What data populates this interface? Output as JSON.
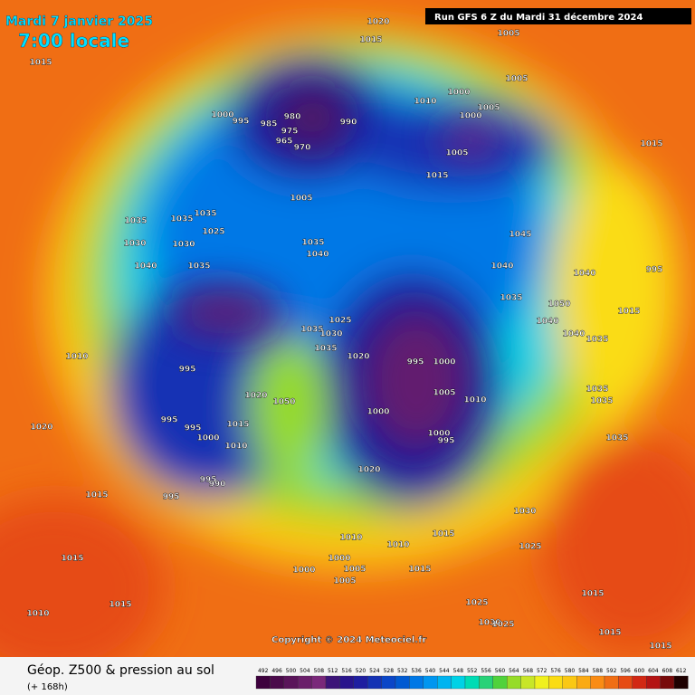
{
  "header": {
    "date": "Mardi 7 janvier 2025",
    "time": "7:00 locale",
    "run": "Run GFS 6 Z du Mardi 31 décembre 2024"
  },
  "copyright": "Copyright © 2024 Meteociel.fr",
  "legend": {
    "title": "Géop. Z500 & pression au sol",
    "subtitle": "(+ 168h)"
  },
  "scale": {
    "values": [
      492,
      496,
      500,
      504,
      508,
      512,
      516,
      520,
      524,
      528,
      532,
      536,
      540,
      544,
      548,
      552,
      556,
      560,
      564,
      568,
      572,
      576,
      580,
      584,
      588,
      592,
      596,
      600,
      604,
      608,
      612
    ],
    "colors": [
      "#3d003d",
      "#4b0a4b",
      "#5a145a",
      "#6a1e6a",
      "#7a287a",
      "#3c1478",
      "#28148c",
      "#1e1ea0",
      "#1432b4",
      "#0a46c8",
      "#005ad2",
      "#0078e6",
      "#0096f0",
      "#00b4f0",
      "#00d2e6",
      "#00dcb4",
      "#28d278",
      "#50d23c",
      "#96dc28",
      "#c8e628",
      "#f0f01e",
      "#fadc14",
      "#fac814",
      "#faaa14",
      "#fa8c14",
      "#f06e14",
      "#e64b14",
      "#d22814",
      "#b41414",
      "#780a0a",
      "#1e0000"
    ]
  },
  "isobar_labels": [
    1020,
    1015,
    1005,
    1015,
    1005,
    1010,
    1000,
    1005,
    1000,
    1000,
    995,
    985,
    980,
    975,
    965,
    970,
    990,
    1015,
    1005,
    1015,
    1005,
    1035,
    1035,
    1035,
    1025,
    1030,
    1030,
    1035,
    1040,
    1045,
    1040,
    1035,
    1040,
    1040,
    995,
    1035,
    1050,
    1015,
    1025,
    1035,
    1030,
    1035,
    1040,
    1040,
    1035,
    1010,
    1020,
    995,
    1000,
    995,
    1005,
    1010,
    1035,
    1035,
    1020,
    1050,
    995,
    1000,
    995,
    1015,
    1020,
    1000,
    1000,
    995,
    1010,
    1035,
    1020,
    995,
    990,
    995,
    1015,
    1030,
    1015,
    1010,
    1010,
    1015,
    1025,
    1000,
    1005,
    1000,
    1005,
    1015,
    1015,
    1025,
    1010,
    1030,
    1025,
    1015,
    1015,
    1015
  ]
}
